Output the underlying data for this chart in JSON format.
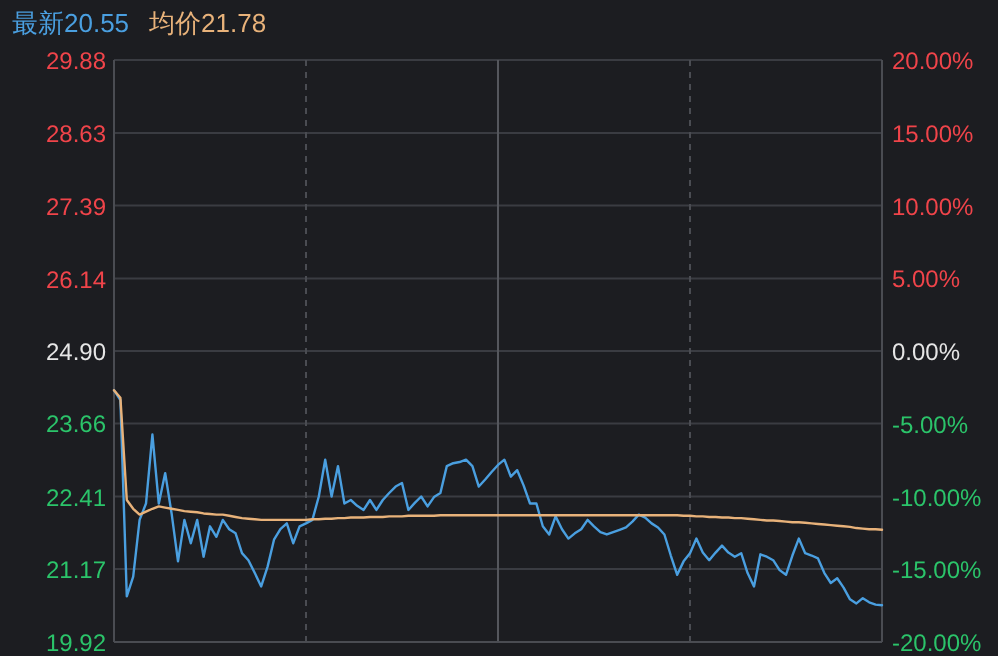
{
  "chart_data": {
    "type": "line",
    "categories": [
      null,
      null,
      null,
      null,
      null,
      null,
      null,
      null,
      null,
      null,
      null,
      null,
      null,
      null,
      null,
      null,
      null,
      null,
      null,
      null,
      null,
      null,
      null,
      null,
      null,
      null,
      null,
      null,
      null,
      null,
      null,
      null,
      null,
      null,
      null,
      null,
      null,
      null,
      null,
      null,
      null,
      null,
      null,
      null,
      null,
      null,
      null,
      null,
      null,
      null,
      null,
      null,
      null,
      null,
      null,
      null,
      null,
      null,
      null,
      null,
      null,
      null,
      null,
      null,
      null,
      null,
      null,
      null,
      null,
      null,
      null,
      null,
      null,
      null,
      null,
      null,
      null,
      null,
      null,
      null,
      null,
      null,
      null,
      null,
      null,
      null,
      null,
      null,
      null,
      null,
      null,
      null,
      null,
      null,
      null,
      null,
      null,
      null,
      null,
      null,
      null,
      null,
      null,
      null,
      null,
      null,
      null,
      null,
      null,
      null,
      null,
      null,
      null,
      null,
      null,
      null,
      null,
      null,
      null,
      null,
      null
    ],
    "tick_labels": "y",
    "ylim": [
      19.92,
      29.88
    ],
    "yticks": [
      {
        "value": 19.92,
        "label": "19.92"
      },
      {
        "value": 21.17,
        "label": "21.17"
      },
      {
        "value": 22.41,
        "label": "22.41"
      },
      {
        "value": 23.66,
        "label": "23.66"
      },
      {
        "value": 24.9,
        "label": "24.90"
      },
      {
        "value": 26.14,
        "label": "26.14"
      },
      {
        "value": 27.39,
        "label": "27.39"
      },
      {
        "value": 28.63,
        "label": "28.63"
      },
      {
        "value": 29.88,
        "label": "29.88"
      }
    ],
    "y2lim": [
      -20,
      20
    ],
    "y2ticks": [
      {
        "value": -20,
        "label": "-20.00%"
      },
      {
        "value": -15,
        "label": "-15.00%"
      },
      {
        "value": -10,
        "label": "-10.00%"
      },
      {
        "value": -5,
        "label": "-5.00%"
      },
      {
        "value": 0,
        "label": "0.00%"
      },
      {
        "value": 5,
        "label": "5.00%"
      },
      {
        "value": 10,
        "label": "10.00%"
      },
      {
        "value": 15,
        "label": "15.00%"
      },
      {
        "value": 20,
        "label": "20.00%"
      }
    ],
    "grid": true,
    "series": [
      {
        "name": "最新20.55",
        "color": "#4a9fe0",
        "values": [
          24.23,
          24.06,
          20.7,
          21.04,
          22.01,
          22.29,
          23.47,
          22.29,
          22.81,
          22.12,
          21.3,
          22.01,
          21.61,
          22.01,
          21.38,
          21.9,
          21.72,
          22.01,
          21.85,
          21.78,
          21.44,
          21.32,
          21.1,
          20.87,
          21.21,
          21.67,
          21.85,
          21.95,
          21.61,
          21.9,
          21.95,
          22.01,
          22.41,
          23.04,
          22.41,
          22.93,
          22.29,
          22.35,
          22.25,
          22.18,
          22.35,
          22.18,
          22.35,
          22.47,
          22.58,
          22.64,
          22.18,
          22.3,
          22.41,
          22.24,
          22.4,
          22.47,
          22.93,
          22.98,
          23.0,
          23.04,
          22.93,
          22.58,
          22.7,
          22.83,
          22.95,
          23.04,
          22.75,
          22.86,
          22.6,
          22.29,
          22.29,
          21.9,
          21.76,
          22.07,
          21.85,
          21.69,
          21.78,
          21.85,
          22.01,
          21.9,
          21.8,
          21.76,
          21.8,
          21.84,
          21.88,
          21.98,
          22.1,
          22.05,
          21.95,
          21.88,
          21.76,
          21.4,
          21.07,
          21.3,
          21.44,
          21.69,
          21.45,
          21.32,
          21.45,
          21.57,
          21.45,
          21.38,
          21.44,
          21.1,
          20.87,
          21.42,
          21.38,
          21.32,
          21.15,
          21.07,
          21.4,
          21.69,
          21.44,
          21.4,
          21.35,
          21.1,
          20.93,
          21.01,
          20.85,
          20.65,
          20.58,
          20.67,
          20.6,
          20.56,
          20.55
        ]
      },
      {
        "name": "均价21.78",
        "color": "#e8b27a",
        "values": [
          24.23,
          24.1,
          22.35,
          22.2,
          22.1,
          22.15,
          22.2,
          22.24,
          22.22,
          22.2,
          22.18,
          22.16,
          22.15,
          22.14,
          22.12,
          22.11,
          22.1,
          22.1,
          22.08,
          22.06,
          22.04,
          22.03,
          22.02,
          22.01,
          22.01,
          22.01,
          22.01,
          22.01,
          22.01,
          22.01,
          22.01,
          22.02,
          22.02,
          22.03,
          22.03,
          22.04,
          22.04,
          22.05,
          22.05,
          22.05,
          22.06,
          22.06,
          22.06,
          22.07,
          22.07,
          22.07,
          22.08,
          22.08,
          22.08,
          22.08,
          22.08,
          22.09,
          22.09,
          22.09,
          22.09,
          22.09,
          22.09,
          22.09,
          22.09,
          22.09,
          22.09,
          22.09,
          22.09,
          22.09,
          22.09,
          22.09,
          22.09,
          22.09,
          22.09,
          22.09,
          22.09,
          22.09,
          22.09,
          22.09,
          22.09,
          22.09,
          22.09,
          22.09,
          22.09,
          22.09,
          22.09,
          22.09,
          22.09,
          22.09,
          22.09,
          22.09,
          22.09,
          22.09,
          22.09,
          22.08,
          22.08,
          22.07,
          22.07,
          22.06,
          22.06,
          22.05,
          22.05,
          22.04,
          22.04,
          22.03,
          22.02,
          22.01,
          22.0,
          22.0,
          21.99,
          21.98,
          21.97,
          21.97,
          21.96,
          21.95,
          21.94,
          21.93,
          21.92,
          21.91,
          21.9,
          21.89,
          21.87,
          21.86,
          21.85,
          21.85,
          21.84
        ]
      }
    ]
  }
}
